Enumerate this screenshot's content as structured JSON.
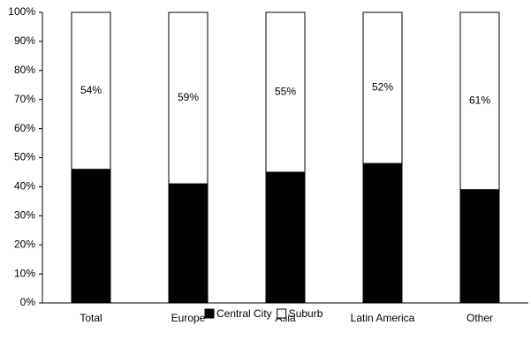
{
  "chart_data": {
    "type": "stacked-bar",
    "categories": [
      "Total",
      "Europe",
      "Asia",
      "Latin America",
      "Other"
    ],
    "series": [
      {
        "name": "Central City",
        "color": "#000000",
        "values": [
          46,
          41,
          45,
          48,
          39
        ]
      },
      {
        "name": "Suburb",
        "color": "#ffffff",
        "values": [
          54,
          59,
          55,
          52,
          61
        ],
        "value_labels": [
          "54%",
          "59%",
          "55%",
          "52%",
          "61%"
        ]
      }
    ],
    "ylim": [
      0,
      100
    ],
    "yticks": [
      {
        "value": 0,
        "label": "0%"
      },
      {
        "value": 10,
        "label": "10%"
      },
      {
        "value": 20,
        "label": "20%"
      },
      {
        "value": 30,
        "label": "30%"
      },
      {
        "value": 40,
        "label": "40%"
      },
      {
        "value": 50,
        "label": "50%"
      },
      {
        "value": 60,
        "label": "60%"
      },
      {
        "value": 70,
        "label": "70%"
      },
      {
        "value": 80,
        "label": "80%"
      },
      {
        "value": 90,
        "label": "90%"
      },
      {
        "value": 100,
        "label": "100%"
      }
    ],
    "grid": false,
    "legend": "bottom"
  }
}
